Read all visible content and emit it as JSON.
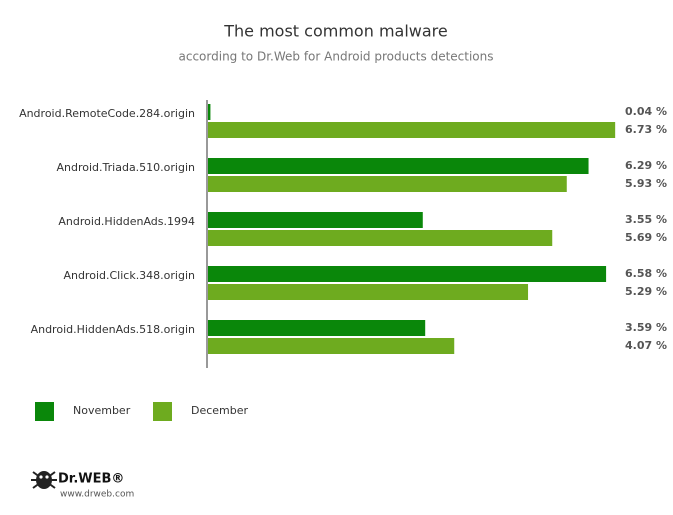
{
  "chart_data": {
    "type": "hbar",
    "title": "The most common malware",
    "subtitle": "according to Dr.Web for Android products detections",
    "categories": [
      "Android.RemoteCode.284.origin",
      "Android.Triada.510.origin",
      "Android.HiddenAds.1994",
      "Android.Click.348.origin",
      "Android.HiddenAds.518.origin"
    ],
    "series": [
      {
        "name": "November",
        "color": "#0a870a",
        "values": [
          0.04,
          6.29,
          3.55,
          6.58,
          3.59
        ],
        "value_labels": [
          "0.04 %",
          "6.29 %",
          "3.55 %",
          "6.58 %",
          "3.59 %"
        ]
      },
      {
        "name": "December",
        "color": "#6eab1f",
        "values": [
          6.73,
          5.93,
          5.69,
          5.29,
          4.07
        ],
        "value_labels": [
          "6.73 %",
          "5.93 %",
          "5.69 %",
          "5.29 %",
          "4.07 %"
        ]
      }
    ],
    "xlim": [
      0,
      7
    ],
    "legend": "bottom-left"
  },
  "logo": {
    "brand": "Dr.WEB®",
    "url": "www.drweb.com"
  }
}
